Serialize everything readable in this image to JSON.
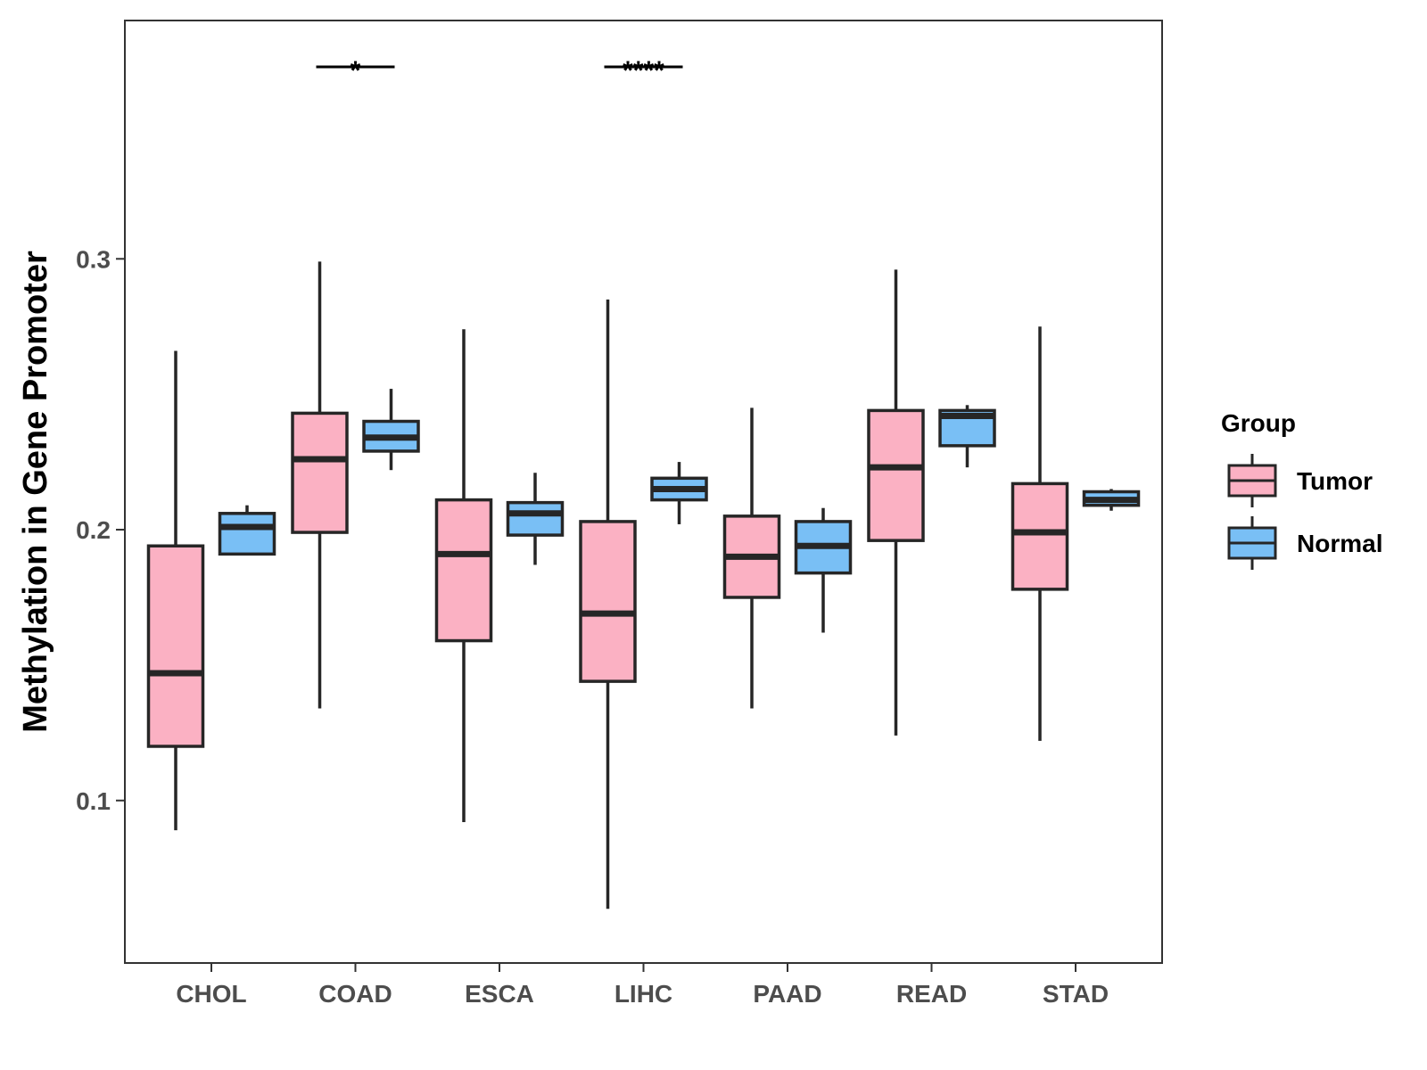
{
  "chart_data": {
    "type": "boxplot",
    "title": "",
    "xlabel": "",
    "ylabel": "Methylation in Gene Promoter",
    "ylim": [
      0.04,
      0.388
    ],
    "yticks": [
      0.1,
      0.2,
      0.3
    ],
    "ytick_labels": [
      "0.1",
      "0.2",
      "0.3"
    ],
    "grid": false,
    "legend": {
      "title": "Group",
      "position": "right",
      "entries": [
        "Tumor",
        "Normal"
      ]
    },
    "colors": {
      "Tumor": "#fbb1c3",
      "Normal": "#79bff5",
      "outline": "#262626"
    },
    "categories": [
      "CHOL",
      "COAD",
      "ESCA",
      "LIHC",
      "PAAD",
      "READ",
      "STAD"
    ],
    "series": [
      {
        "name": "Tumor",
        "boxes": [
          {
            "min": 0.089,
            "q1": 0.12,
            "median": 0.147,
            "q3": 0.194,
            "max": 0.266
          },
          {
            "min": 0.134,
            "q1": 0.199,
            "median": 0.226,
            "q3": 0.243,
            "max": 0.299
          },
          {
            "min": 0.092,
            "q1": 0.159,
            "median": 0.191,
            "q3": 0.211,
            "max": 0.274
          },
          {
            "min": 0.06,
            "q1": 0.144,
            "median": 0.169,
            "q3": 0.203,
            "max": 0.285
          },
          {
            "min": 0.134,
            "q1": 0.175,
            "median": 0.19,
            "q3": 0.205,
            "max": 0.245
          },
          {
            "min": 0.124,
            "q1": 0.196,
            "median": 0.223,
            "q3": 0.244,
            "max": 0.296
          },
          {
            "min": 0.122,
            "q1": 0.178,
            "median": 0.199,
            "q3": 0.217,
            "max": 0.275
          }
        ]
      },
      {
        "name": "Normal",
        "boxes": [
          {
            "min": 0.191,
            "q1": 0.191,
            "median": 0.201,
            "q3": 0.206,
            "max": 0.209
          },
          {
            "min": 0.222,
            "q1": 0.229,
            "median": 0.234,
            "q3": 0.24,
            "max": 0.252
          },
          {
            "min": 0.187,
            "q1": 0.198,
            "median": 0.206,
            "q3": 0.21,
            "max": 0.221
          },
          {
            "min": 0.202,
            "q1": 0.211,
            "median": 0.215,
            "q3": 0.219,
            "max": 0.225
          },
          {
            "min": 0.162,
            "q1": 0.184,
            "median": 0.194,
            "q3": 0.203,
            "max": 0.208
          },
          {
            "min": 0.223,
            "q1": 0.231,
            "median": 0.242,
            "q3": 0.244,
            "max": 0.246
          },
          {
            "min": 0.207,
            "q1": 0.209,
            "median": 0.211,
            "q3": 0.214,
            "max": 0.215
          }
        ]
      }
    ],
    "annotations": [
      {
        "category": "COAD",
        "label": "*"
      },
      {
        "category": "LIHC",
        "label": "****"
      }
    ]
  }
}
